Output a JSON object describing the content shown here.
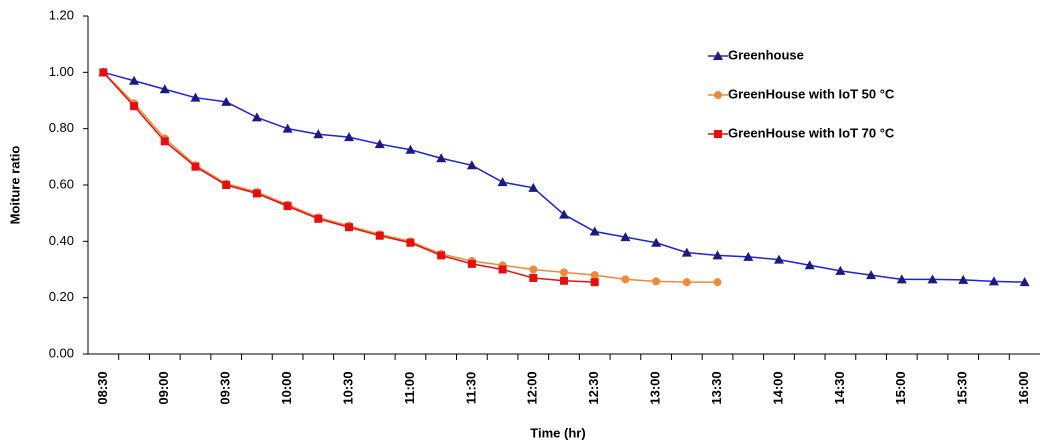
{
  "chart_data": {
    "type": "line",
    "x_label": "Time (hr)",
    "y_label": "Moiture ratio",
    "categories": [
      "08:30",
      null,
      "09:00",
      null,
      "09:30",
      null,
      "10:00",
      null,
      "10:30",
      null,
      "11:00",
      null,
      "11:30",
      null,
      "12:00",
      null,
      "12:30",
      null,
      "13:00",
      null,
      "13:30",
      null,
      "14:00",
      null,
      "14:30",
      null,
      "15:00",
      null,
      "15:30",
      null,
      "16:00"
    ],
    "series": [
      {
        "name": "Greenhouse",
        "color": "#2020e0",
        "marker_color": "#1a1a80",
        "marker": "triangle",
        "values": [
          1.0,
          0.97,
          0.94,
          0.91,
          0.895,
          0.84,
          0.8,
          0.78,
          0.77,
          0.745,
          0.725,
          0.695,
          0.67,
          0.61,
          0.59,
          0.495,
          0.435,
          0.415,
          0.395,
          0.36,
          0.35,
          0.345,
          0.335,
          0.315,
          0.295,
          0.28,
          0.265,
          0.265,
          0.263,
          0.258,
          0.255
        ]
      },
      {
        "name": "GreenHouse with IoT 50 °C",
        "color": "#f0883a",
        "marker_color": "#f0883a",
        "marker": "circle",
        "values": [
          1.0,
          0.89,
          0.765,
          0.67,
          0.605,
          0.575,
          0.53,
          0.485,
          0.455,
          0.425,
          0.4,
          0.355,
          0.33,
          0.315,
          0.3,
          0.29,
          0.28,
          0.265,
          0.258,
          0.255,
          0.255,
          null,
          null,
          null,
          null,
          null,
          null,
          null,
          null,
          null,
          null
        ]
      },
      {
        "name": "GreenHouse with IoT 70 °C",
        "color": "#e41010",
        "marker_color": "#e41010",
        "marker": "square",
        "values": [
          1.0,
          0.88,
          0.755,
          0.665,
          0.6,
          0.57,
          0.525,
          0.48,
          0.45,
          0.42,
          0.395,
          0.35,
          0.32,
          0.3,
          0.27,
          0.26,
          0.255,
          null,
          null,
          null,
          null,
          null,
          null,
          null,
          null,
          null,
          null,
          null,
          null,
          null,
          null
        ]
      }
    ],
    "ylim": [
      0,
      1.2
    ],
    "yticks": [
      {
        "value": 0,
        "label": "0.00"
      },
      {
        "value": 0.2,
        "label": "0.20"
      },
      {
        "value": 0.4,
        "label": "0.40"
      },
      {
        "value": 0.6,
        "label": "0.60"
      },
      {
        "value": 0.8,
        "label": "0.80"
      },
      {
        "value": 1.0,
        "label": "1.00"
      },
      {
        "value": 1.2,
        "label": "1.20"
      }
    ],
    "grid": false,
    "legend": "upper right"
  }
}
